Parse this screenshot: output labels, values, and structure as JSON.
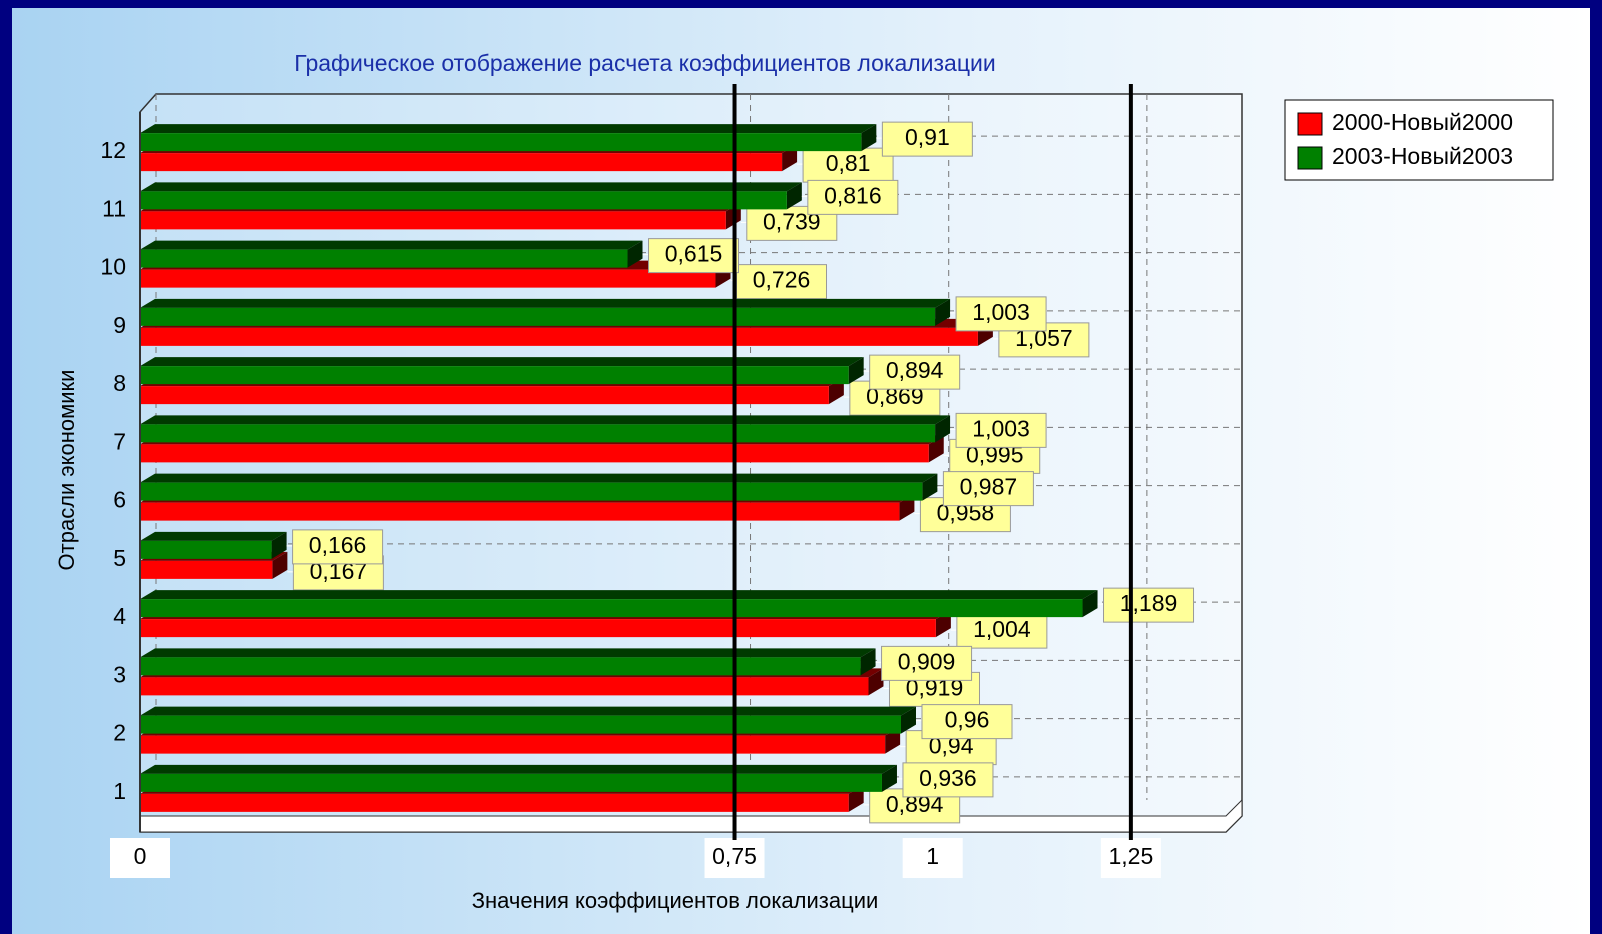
{
  "chart_data": {
    "type": "bar",
    "orientation": "horizontal",
    "title": "Графическое отображение расчета коэффициентов локализации",
    "x_label": "Значения коэффициентов локализации",
    "y_label": "Отрасли экономики",
    "categories": [
      "1",
      "2",
      "3",
      "4",
      "5",
      "6",
      "7",
      "8",
      "9",
      "10",
      "11",
      "12"
    ],
    "series": [
      {
        "name": "2000-Новый2000",
        "color": "#ff0000",
        "values": [
          0.894,
          0.94,
          0.919,
          1.004,
          0.167,
          0.958,
          0.995,
          0.869,
          1.057,
          0.726,
          0.739,
          0.81
        ],
        "value_labels": [
          "0,894",
          "0,94",
          "0,919",
          "1,004",
          "0,167",
          "0,958",
          "0,995",
          "0,869",
          "1,057",
          "0,726",
          "0,739",
          "0,81"
        ]
      },
      {
        "name": "2003-Новый2003",
        "color": "#008000",
        "values": [
          0.936,
          0.96,
          0.909,
          1.189,
          0.166,
          0.987,
          1.003,
          0.894,
          1.003,
          0.615,
          0.816,
          0.91
        ],
        "value_labels": [
          "0,936",
          "0,96",
          "0,909",
          "1,189",
          "0,166",
          "0,987",
          "1,003",
          "0,894",
          "1,003",
          "0,615",
          "0,816",
          "0,91"
        ]
      }
    ],
    "xlim": [
      0,
      1.37
    ],
    "xticks": [
      0,
      {
        "value": 0.75,
        "label": "0,75"
      },
      1,
      {
        "value": 1.25,
        "label": "1,25"
      }
    ],
    "reference_lines": [
      0.75,
      1.25
    ],
    "grid": true,
    "legend": "top-right"
  }
}
